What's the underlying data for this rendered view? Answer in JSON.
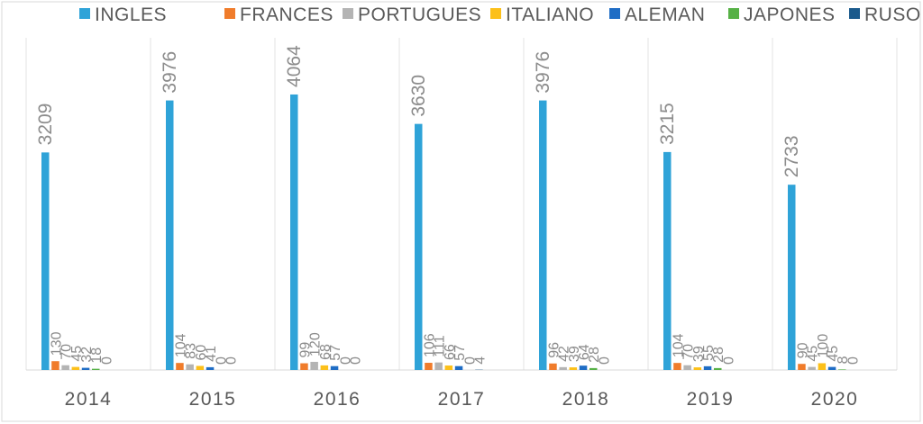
{
  "chart_data": {
    "type": "bar",
    "title": "",
    "xlabel": "",
    "ylabel": "",
    "ylim": [
      0,
      4900
    ],
    "legend_position": "top",
    "grid": false,
    "categories": [
      "2014",
      "2015",
      "2016",
      "2017",
      "2018",
      "2019",
      "2020"
    ],
    "series": [
      {
        "name": "INGLES",
        "color": "#2fa3d8",
        "values": [
          3209,
          3976,
          4064,
          3630,
          3976,
          3215,
          2733
        ]
      },
      {
        "name": "FRANCES",
        "color": "#f07c2b",
        "values": [
          130,
          104,
          99,
          106,
          96,
          104,
          90
        ]
      },
      {
        "name": "PORTUGUES",
        "color": "#b4b4b4",
        "values": [
          70,
          83,
          120,
          111,
          42,
          70,
          45
        ]
      },
      {
        "name": "ITALIANO",
        "color": "#fcc01a",
        "values": [
          45,
          60,
          68,
          66,
          39,
          39,
          100
        ]
      },
      {
        "name": "ALEMAN",
        "color": "#1f6dc5",
        "values": [
          32,
          41,
          57,
          57,
          64,
          55,
          45
        ]
      },
      {
        "name": "JAPONES",
        "color": "#56b146",
        "values": [
          18,
          0,
          0,
          0,
          28,
          28,
          8
        ]
      },
      {
        "name": "RUSO",
        "color": "#1b5a8c",
        "values": [
          0,
          0,
          0,
          4,
          0,
          0,
          0
        ]
      }
    ]
  }
}
